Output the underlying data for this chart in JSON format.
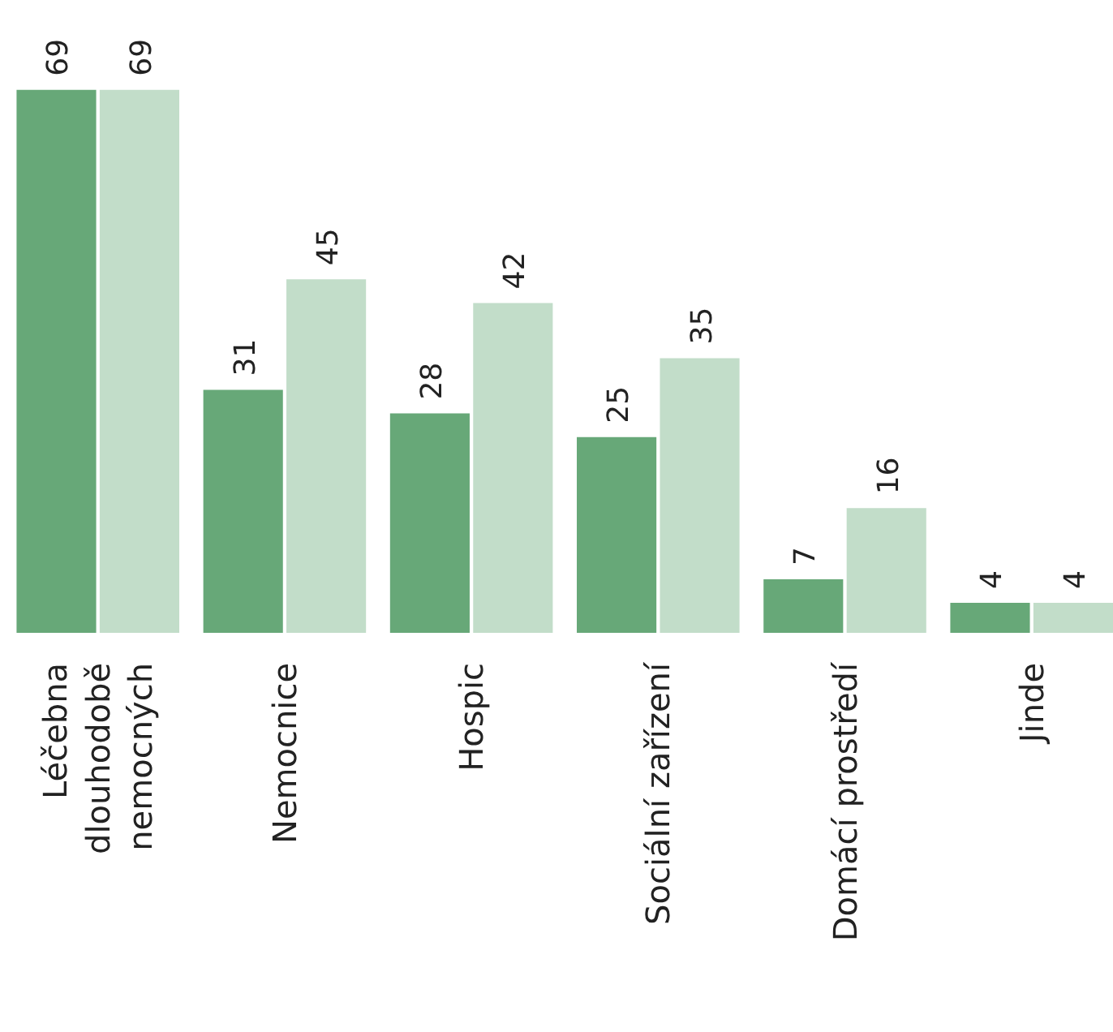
{
  "chart_data": {
    "type": "bar",
    "categories": [
      "Léčebna dlouhodobě nemocných",
      "Nemocnice",
      "Hospic",
      "Sociální zařízení",
      "Domácí prostředí",
      "Jinde"
    ],
    "series": [
      {
        "color": "#67a878",
        "values": [
          69,
          31,
          28,
          25,
          7,
          4
        ]
      },
      {
        "color": "#c2ddc9",
        "values": [
          69,
          45,
          42,
          35,
          16,
          4
        ]
      }
    ],
    "data_labels": true
  }
}
